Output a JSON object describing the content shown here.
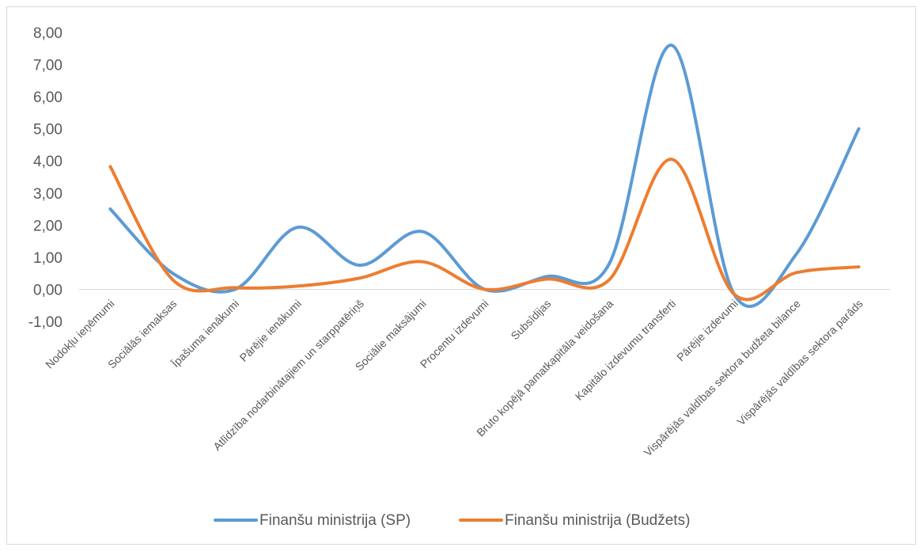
{
  "chart_data": {
    "type": "line",
    "title": "",
    "xlabel": "",
    "ylabel": "",
    "ylim": [
      -1,
      8
    ],
    "yticks": [
      -1,
      0,
      1,
      2,
      3,
      4,
      5,
      6,
      7,
      8
    ],
    "ytick_labels": [
      "-1,00",
      "0,00",
      "1,00",
      "2,00",
      "3,00",
      "4,00",
      "5,00",
      "6,00",
      "7,00",
      "8,00"
    ],
    "grid": false,
    "legend_position": "bottom",
    "smooth": true,
    "categories": [
      "Nodokļu ieņēmumi",
      "Sociālās iemaksas",
      "Īpašuma ienākumi",
      "Pārējie ienākumi",
      "Atlīdzība nodarbinātajiem un starppatēriņš",
      "Sociālie maksājumi",
      "Procentu izdevumi",
      "Subsīdijas",
      "Bruto kopējā pamatkapitāla veidošana",
      "Kapitālo izdevumu transferti",
      "Pārējie izdevumi",
      "Vispārējās valdības sektora budžeta bilance",
      "Vispārējās valdības sektora parāds"
    ],
    "series": [
      {
        "name": "Finanšu ministrija (SP)",
        "color": "#5b9bd5",
        "values": [
          2.5,
          0.5,
          0.0,
          1.93,
          0.75,
          1.8,
          0.0,
          0.4,
          0.8,
          7.6,
          -0.15,
          1.1,
          5.0
        ]
      },
      {
        "name": "Finanšu ministrija (Budžets)",
        "color": "#ed7d31",
        "values": [
          3.82,
          0.3,
          0.05,
          0.1,
          0.35,
          0.86,
          0.0,
          0.32,
          0.3,
          4.05,
          -0.15,
          0.52,
          0.7
        ]
      }
    ]
  }
}
